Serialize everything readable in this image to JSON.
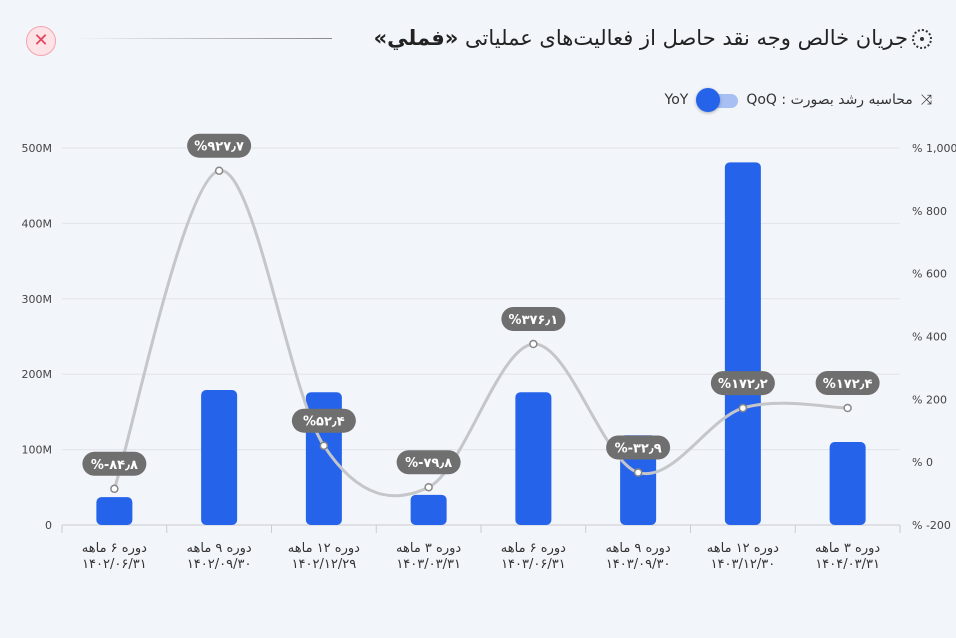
{
  "header": {
    "title_main": "جریان خالص وجه نقد حاصل از فعالیت‌های عملیاتی",
    "title_symbol": "«فملي»",
    "close_icon": "close-icon"
  },
  "growth": {
    "label": "محاسبه رشد بصورت : QoQ",
    "alt": "YoY",
    "toggle_state": "QoQ"
  },
  "colors": {
    "bar": "#2563eb",
    "line": "#c4c6c9",
    "label_bg": "#6f6f6f"
  },
  "chart_data": {
    "type": "bar",
    "categories": [
      [
        "دوره ۶ ماهه",
        "۱۴۰۲/۰۶/۳۱"
      ],
      [
        "دوره ۹ ماهه",
        "۱۴۰۲/۰۹/۳۰"
      ],
      [
        "دوره ۱۲ ماهه",
        "۱۴۰۲/۱۲/۲۹"
      ],
      [
        "دوره ۳ ماهه",
        "۱۴۰۳/۰۳/۳۱"
      ],
      [
        "دوره ۶ ماهه",
        "۱۴۰۳/۰۶/۳۱"
      ],
      [
        "دوره ۹ ماهه",
        "۱۴۰۳/۰۹/۳۰"
      ],
      [
        "دوره ۱۲ ماهه",
        "۱۴۰۳/۱۲/۳۰"
      ],
      [
        "دوره ۳ ماهه",
        "۱۴۰۴/۰۳/۳۱"
      ]
    ],
    "series": [
      {
        "name": "cash_flow",
        "type": "bar",
        "axis": "left",
        "values": [
          37,
          179,
          176,
          40,
          176,
          119,
          481,
          110
        ]
      },
      {
        "name": "growth_pct",
        "type": "line",
        "axis": "right",
        "values": [
          -84.8,
          927.7,
          52.4,
          -79.8,
          376.1,
          -32.9,
          172.2,
          172.4
        ],
        "labels": [
          "%-۸۴٫۸",
          "%۹۲۷٫۷",
          "%۵۲٫۴",
          "%-۷۹٫۸",
          "%۳۷۶٫۱",
          "%-۳۲٫۹",
          "%۱۷۲٫۲",
          "%۱۷۲٫۴"
        ]
      }
    ],
    "left_axis": {
      "ylim": [
        0,
        500
      ],
      "ticks": [
        0,
        100,
        200,
        300,
        400,
        500
      ],
      "tick_labels": [
        "0",
        "100M",
        "200M",
        "300M",
        "400M",
        "500M"
      ]
    },
    "right_axis": {
      "ylim": [
        -200,
        1000
      ],
      "ticks": [
        -200,
        0,
        200,
        400,
        600,
        800,
        1000
      ],
      "tick_labels": [
        "% -200",
        "% 0",
        "% 200",
        "% 400",
        "% 600",
        "% 800",
        "% 1,000"
      ]
    },
    "grid": true
  }
}
